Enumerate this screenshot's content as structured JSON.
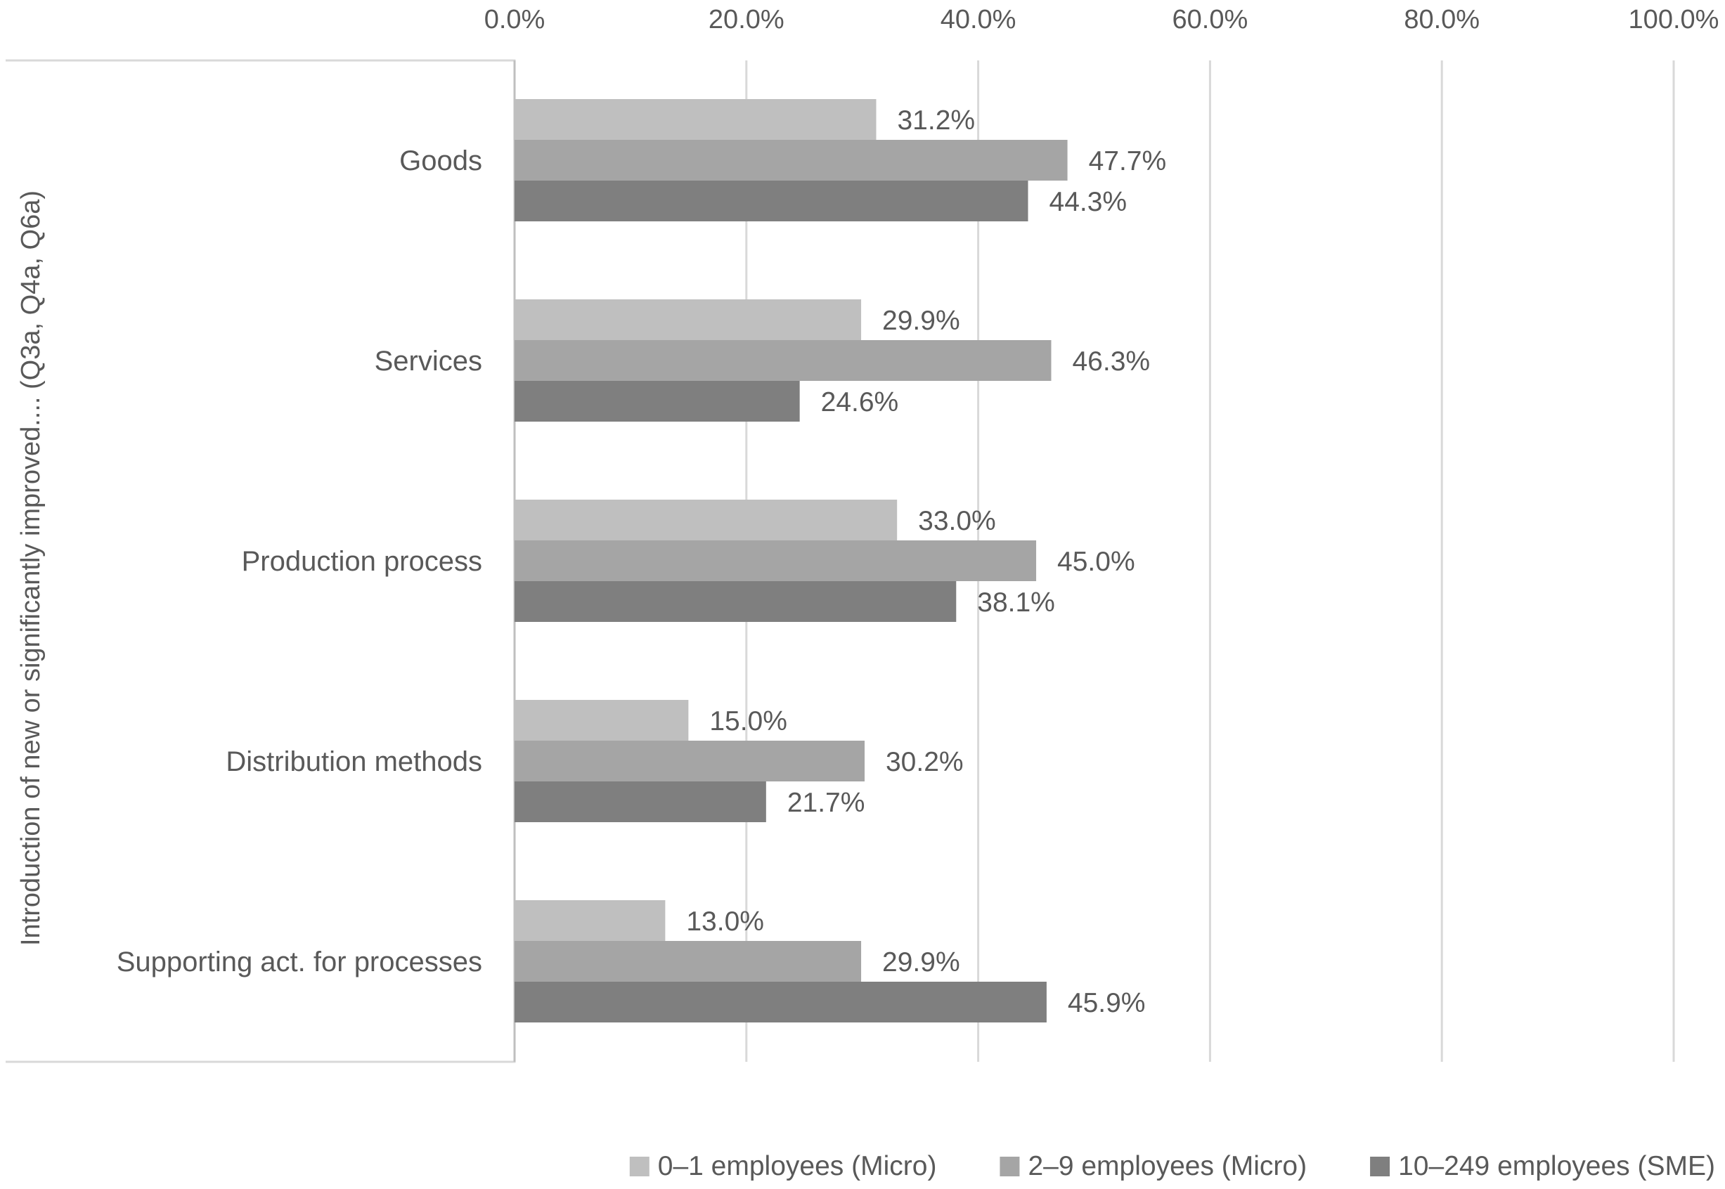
{
  "chart_data": {
    "type": "bar",
    "orientation": "horizontal",
    "title": "",
    "ylabel": "Introduction of new or significantly improved.... (Q3a, Q4a, Q6a)",
    "xlabel": "",
    "xlim": [
      0,
      100
    ],
    "x_ticks": [
      "0.0%",
      "20.0%",
      "40.0%",
      "60.0%",
      "80.0%",
      "100.0%"
    ],
    "x_tick_values": [
      0,
      20,
      40,
      60,
      80,
      100
    ],
    "grid": true,
    "legend_position": "bottom",
    "categories": [
      "Goods",
      "Services",
      "Production process",
      "Distribution methods",
      "Supporting act. for processes"
    ],
    "series": [
      {
        "name": "0–1 employees (Micro)",
        "color": "#bfbfbf",
        "values": [
          31.2,
          29.9,
          33.0,
          15.0,
          13.0
        ],
        "labels": [
          "31.2%",
          "29.9%",
          "33.0%",
          "15.0%",
          "13.0%"
        ]
      },
      {
        "name": "2–9 employees (Micro)",
        "color": "#a5a5a5",
        "values": [
          47.7,
          46.3,
          45.0,
          30.2,
          29.9
        ],
        "labels": [
          "47.7%",
          "46.3%",
          "45.0%",
          "30.2%",
          "29.9%"
        ]
      },
      {
        "name": "10–249 employees (SME)",
        "color": "#7f7f7f",
        "values": [
          44.3,
          24.6,
          38.1,
          21.7,
          45.9
        ],
        "labels": [
          "44.3%",
          "24.6%",
          "38.1%",
          "21.7%",
          "45.9%"
        ]
      }
    ]
  }
}
